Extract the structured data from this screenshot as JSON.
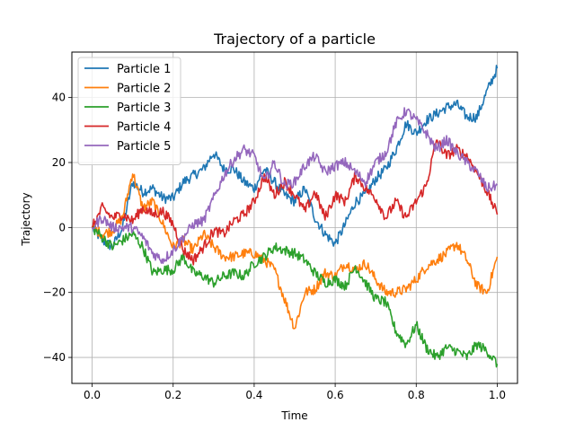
{
  "chart_data": {
    "type": "line",
    "title": "Trajectory of a particle",
    "xlabel": "Time",
    "ylabel": "Trajectory",
    "xlim": [
      -0.05,
      1.05
    ],
    "ylim": [
      -48,
      54
    ],
    "xticks": [
      0.0,
      0.2,
      0.4,
      0.6,
      0.8,
      1.0
    ],
    "xtick_labels": [
      "0.0",
      "0.2",
      "0.4",
      "0.6",
      "0.8",
      "1.0"
    ],
    "yticks": [
      -40,
      -20,
      0,
      20,
      40
    ],
    "ytick_labels": [
      "−40",
      "−20",
      "0",
      "20",
      "40"
    ],
    "grid": true,
    "legend": "top-left",
    "x": [
      0.0,
      0.025,
      0.05,
      0.075,
      0.1,
      0.125,
      0.15,
      0.175,
      0.2,
      0.225,
      0.25,
      0.275,
      0.3,
      0.325,
      0.35,
      0.375,
      0.4,
      0.425,
      0.45,
      0.475,
      0.5,
      0.525,
      0.55,
      0.575,
      0.6,
      0.625,
      0.65,
      0.675,
      0.7,
      0.725,
      0.75,
      0.775,
      0.8,
      0.825,
      0.85,
      0.875,
      0.9,
      0.925,
      0.95,
      0.975,
      1.0
    ],
    "series": [
      {
        "name": "Particle 1",
        "color": "#1f77b4",
        "values": [
          0,
          -4,
          -6,
          0,
          14,
          11,
          12,
          9,
          9,
          14,
          16,
          18,
          23,
          18,
          18,
          14,
          12,
          18,
          14,
          10,
          8,
          12,
          3,
          -2,
          -5,
          1,
          8,
          10,
          15,
          18,
          24,
          32,
          29,
          33,
          35,
          37,
          38,
          34,
          34,
          42,
          49
        ]
      },
      {
        "name": "Particle 2",
        "color": "#ff7f0e",
        "values": [
          0,
          -2,
          -1,
          3,
          17,
          6,
          8,
          1,
          -6,
          -4,
          -7,
          -2,
          -6,
          -9,
          -9,
          -8,
          -8,
          -10,
          -13,
          -22,
          -31,
          -20,
          -19,
          -14,
          -15,
          -11,
          -13,
          -11,
          -16,
          -20,
          -20,
          -19,
          -16,
          -12,
          -10,
          -8,
          -5,
          -10,
          -18,
          -20,
          -9
        ]
      },
      {
        "name": "Particle 3",
        "color": "#2ca02c",
        "values": [
          0,
          -3,
          -6,
          -4,
          -2,
          -6,
          -14,
          -13,
          -13,
          -9,
          -14,
          -15,
          -17,
          -15,
          -14,
          -15,
          -11,
          -9,
          -6,
          -7,
          -8,
          -10,
          -14,
          -17,
          -16,
          -18,
          -12,
          -17,
          -22,
          -23,
          -32,
          -36,
          -30,
          -37,
          -40,
          -37,
          -38,
          -40,
          -36,
          -38,
          -42
        ]
      },
      {
        "name": "Particle 4",
        "color": "#d62728",
        "values": [
          0,
          6,
          3,
          4,
          2,
          6,
          4,
          5,
          1,
          -7,
          -10,
          -6,
          -1,
          -2,
          2,
          4,
          8,
          16,
          10,
          14,
          10,
          5,
          11,
          3,
          10,
          8,
          16,
          12,
          9,
          3,
          8,
          3,
          8,
          13,
          27,
          22,
          24,
          22,
          17,
          11,
          4
        ]
      },
      {
        "name": "Particle 5",
        "color": "#9467bd",
        "values": [
          0,
          3,
          0,
          0,
          0,
          -3,
          -8,
          -10,
          -7,
          -3,
          1,
          2,
          9,
          16,
          21,
          24,
          22,
          14,
          20,
          13,
          14,
          19,
          22,
          17,
          19,
          20,
          17,
          14,
          20,
          23,
          32,
          36,
          33,
          29,
          24,
          27,
          23,
          20,
          17,
          12,
          13
        ]
      }
    ]
  }
}
